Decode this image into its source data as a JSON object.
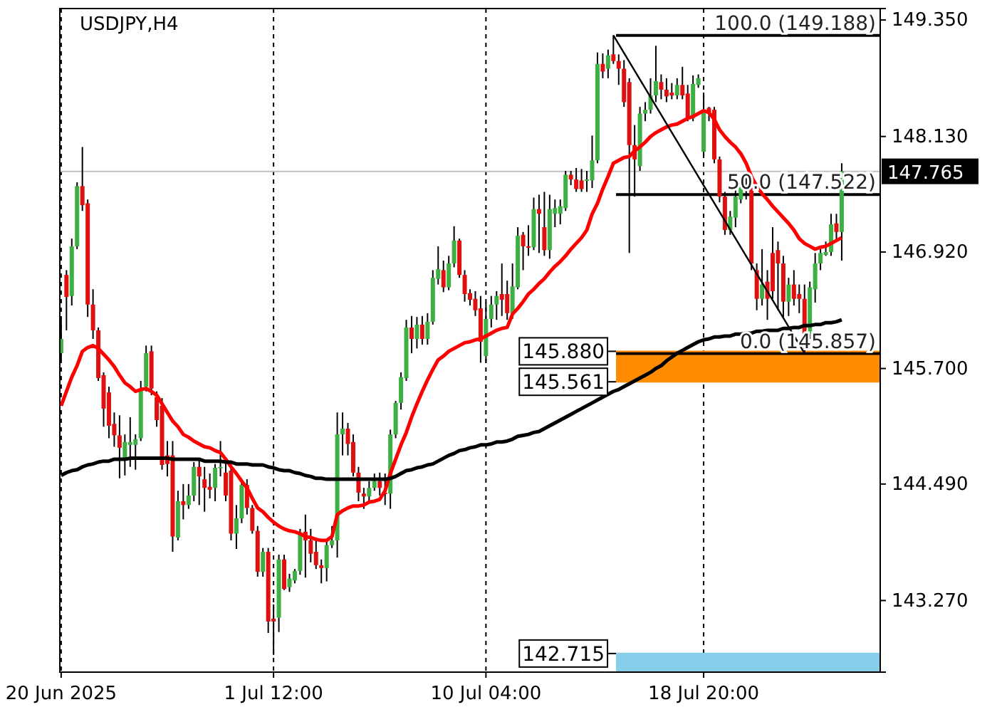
{
  "chart_data": {
    "type": "candlestick",
    "title": "USDJPY,H4",
    "categories": [
      "20 Jun 2025",
      null,
      null,
      null,
      null,
      null,
      null,
      null,
      null,
      null,
      null,
      null,
      null,
      null,
      null,
      null,
      null,
      null,
      null,
      null,
      null,
      null,
      null,
      null,
      null,
      null,
      null,
      null,
      null,
      null,
      null,
      null,
      null,
      null,
      null,
      null,
      null,
      null,
      null,
      null,
      "1 Jul 12:00",
      null,
      null,
      null,
      null,
      null,
      null,
      null,
      null,
      null,
      null,
      null,
      null,
      null,
      null,
      null,
      null,
      null,
      null,
      null,
      null,
      null,
      null,
      null,
      null,
      null,
      null,
      null,
      null,
      null,
      null,
      null,
      null,
      null,
      null,
      null,
      null,
      null,
      null,
      null,
      "10 Jul 04:00",
      null,
      null,
      null,
      null,
      null,
      null,
      null,
      null,
      null,
      null,
      null,
      null,
      null,
      null,
      null,
      null,
      null,
      null,
      null,
      null,
      null,
      null,
      null,
      null,
      null,
      null,
      null,
      null,
      null,
      null,
      null,
      null,
      null,
      null,
      null,
      null,
      null,
      null,
      null,
      null,
      "18 Jul 20:00",
      null,
      null,
      null,
      null,
      null,
      null,
      null,
      null,
      null,
      null,
      null,
      null,
      null,
      null,
      null,
      null,
      null,
      null,
      null,
      null,
      null,
      null,
      null,
      null,
      null,
      null
    ],
    "ohlc": [
      [
        145.86,
        146.21,
        145.79,
        146.01
      ],
      [
        146.68,
        146.73,
        146.1,
        146.45
      ],
      [
        146.46,
        147.06,
        146.36,
        146.98
      ],
      [
        146.98,
        147.65,
        146.95,
        147.61
      ],
      [
        147.61,
        148.02,
        147.35,
        147.41
      ],
      [
        147.43,
        147.47,
        146.24,
        146.37
      ],
      [
        146.37,
        146.53,
        146.01,
        146.1
      ],
      [
        146.1,
        146.13,
        145.57,
        145.6
      ],
      [
        145.63,
        145.66,
        145.09,
        145.28
      ],
      [
        145.45,
        145.51,
        144.97,
        145.1
      ],
      [
        145.12,
        145.24,
        144.88,
        145.0
      ],
      [
        145.0,
        145.21,
        144.55,
        144.87
      ],
      [
        144.75,
        145.01,
        144.58,
        144.93
      ],
      [
        144.9,
        145.19,
        144.67,
        144.93
      ],
      [
        144.9,
        145.01,
        144.64,
        144.96
      ],
      [
        144.97,
        145.57,
        144.94,
        145.49
      ],
      [
        145.51,
        145.94,
        145.46,
        145.86
      ],
      [
        145.88,
        145.94,
        145.42,
        145.49
      ],
      [
        145.4,
        145.46,
        145.09,
        145.16
      ],
      [
        145.31,
        145.39,
        144.64,
        144.69
      ],
      [
        144.79,
        144.94,
        144.57,
        144.7
      ],
      [
        144.79,
        144.94,
        143.78,
        143.94
      ],
      [
        143.93,
        144.42,
        143.9,
        144.31
      ],
      [
        144.31,
        144.49,
        144.12,
        144.27
      ],
      [
        144.27,
        144.49,
        144.23,
        144.37
      ],
      [
        144.37,
        144.72,
        144.31,
        144.67
      ],
      [
        144.67,
        144.76,
        144.27,
        144.57
      ],
      [
        144.54,
        144.67,
        144.2,
        144.45
      ],
      [
        144.46,
        144.6,
        144.34,
        144.43
      ],
      [
        144.45,
        144.7,
        144.31,
        144.66
      ],
      [
        144.66,
        144.94,
        144.57,
        144.67
      ],
      [
        144.61,
        144.76,
        144.31,
        144.37
      ],
      [
        144.63,
        144.7,
        143.9,
        143.97
      ],
      [
        143.97,
        144.27,
        143.81,
        144.13
      ],
      [
        144.13,
        144.52,
        144.08,
        144.48
      ],
      [
        144.48,
        144.54,
        144.17,
        144.24
      ],
      [
        144.24,
        144.27,
        143.97,
        144.0
      ],
      [
        144.0,
        144.05,
        143.52,
        143.57
      ],
      [
        143.57,
        143.82,
        143.52,
        143.78
      ],
      [
        143.78,
        143.82,
        142.93,
        143.05
      ],
      [
        143.08,
        143.23,
        142.7,
        143.05
      ],
      [
        143.09,
        143.75,
        142.94,
        143.7
      ],
      [
        143.7,
        143.75,
        143.38,
        143.39
      ],
      [
        143.41,
        143.55,
        143.36,
        143.5
      ],
      [
        143.48,
        143.6,
        143.45,
        143.58
      ],
      [
        143.58,
        144.02,
        143.54,
        143.96
      ],
      [
        143.99,
        144.17,
        143.51,
        143.9
      ],
      [
        143.9,
        144.02,
        143.67,
        143.76
      ],
      [
        143.78,
        143.93,
        143.6,
        143.64
      ],
      [
        143.64,
        143.7,
        143.45,
        143.61
      ],
      [
        143.61,
        143.9,
        143.47,
        143.85
      ],
      [
        143.85,
        144.05,
        143.82,
        143.9
      ],
      [
        143.9,
        145.24,
        143.72,
        145.01
      ],
      [
        145.01,
        145.24,
        144.79,
        145.07
      ],
      [
        145.07,
        145.13,
        144.79,
        144.91
      ],
      [
        144.93,
        145.01,
        144.57,
        144.61
      ],
      [
        144.61,
        144.67,
        144.31,
        144.4
      ],
      [
        144.39,
        144.45,
        144.23,
        144.36
      ],
      [
        144.36,
        144.52,
        144.31,
        144.45
      ],
      [
        144.45,
        144.6,
        144.42,
        144.52
      ],
      [
        144.52,
        144.61,
        144.37,
        144.45
      ],
      [
        144.4,
        144.6,
        144.27,
        144.39
      ],
      [
        144.39,
        145.06,
        144.23,
        145.01
      ],
      [
        145.01,
        145.36,
        144.97,
        145.34
      ],
      [
        145.34,
        145.66,
        145.27,
        145.61
      ],
      [
        145.6,
        146.21,
        145.57,
        146.13
      ],
      [
        146.13,
        146.25,
        145.86,
        146.01
      ],
      [
        146.01,
        146.24,
        145.91,
        146.16
      ],
      [
        146.16,
        146.25,
        145.95,
        146.01
      ],
      [
        146.01,
        146.28,
        145.95,
        146.19
      ],
      [
        146.19,
        146.73,
        146.16,
        146.65
      ],
      [
        146.64,
        146.98,
        146.58,
        146.74
      ],
      [
        146.73,
        146.83,
        146.5,
        146.55
      ],
      [
        146.55,
        146.88,
        146.52,
        146.8
      ],
      [
        146.8,
        147.19,
        146.76,
        147.04
      ],
      [
        147.04,
        147.06,
        146.65,
        146.68
      ],
      [
        146.68,
        146.73,
        146.4,
        146.48
      ],
      [
        146.49,
        146.53,
        146.36,
        146.42
      ],
      [
        146.43,
        146.51,
        146.25,
        146.31
      ],
      [
        146.33,
        146.46,
        145.76,
        145.98
      ],
      [
        145.83,
        146.39,
        145.76,
        146.22
      ],
      [
        146.22,
        146.46,
        146.13,
        146.37
      ],
      [
        146.37,
        146.51,
        146.21,
        146.46
      ],
      [
        146.48,
        146.8,
        146.25,
        146.42
      ],
      [
        146.48,
        146.62,
        146.21,
        146.28
      ],
      [
        146.28,
        146.8,
        146.22,
        146.56
      ],
      [
        146.55,
        147.18,
        146.53,
        147.09
      ],
      [
        147.1,
        147.13,
        146.73,
        146.98
      ],
      [
        146.98,
        147.2,
        146.88,
        146.97
      ],
      [
        146.97,
        147.49,
        146.94,
        147.37
      ],
      [
        147.37,
        147.52,
        146.91,
        147.32
      ],
      [
        147.18,
        147.55,
        146.88,
        146.94
      ],
      [
        146.94,
        147.52,
        146.85,
        147.37
      ],
      [
        147.32,
        147.47,
        147.18,
        147.38
      ],
      [
        147.32,
        147.47,
        147.21,
        147.4
      ],
      [
        147.38,
        147.77,
        147.35,
        147.73
      ],
      [
        147.73,
        147.77,
        147.62,
        147.68
      ],
      [
        147.68,
        147.8,
        147.55,
        147.58
      ],
      [
        147.67,
        147.79,
        147.55,
        147.58
      ],
      [
        147.67,
        147.77,
        147.55,
        147.68
      ],
      [
        147.67,
        148.14,
        147.59,
        147.88
      ],
      [
        147.88,
        149.01,
        147.85,
        148.89
      ],
      [
        148.89,
        149.0,
        148.74,
        148.81
      ],
      [
        148.84,
        149.04,
        148.74,
        148.98
      ],
      [
        148.99,
        149.19,
        148.89,
        148.92
      ],
      [
        148.92,
        148.99,
        148.67,
        148.84
      ],
      [
        148.84,
        148.93,
        148.44,
        148.49
      ],
      [
        148.7,
        148.74,
        146.91,
        148.04
      ],
      [
        148.04,
        148.25,
        147.5,
        147.89
      ],
      [
        147.82,
        148.44,
        147.77,
        148.37
      ],
      [
        148.37,
        148.49,
        148.29,
        148.41
      ],
      [
        148.41,
        148.74,
        148.37,
        148.56
      ],
      [
        148.56,
        149.08,
        148.49,
        148.71
      ],
      [
        148.7,
        148.78,
        148.52,
        148.62
      ],
      [
        148.62,
        148.74,
        148.49,
        148.55
      ],
      [
        148.59,
        148.69,
        148.52,
        148.56
      ],
      [
        148.56,
        148.74,
        148.52,
        148.67
      ],
      [
        148.67,
        148.86,
        148.52,
        148.56
      ],
      [
        148.58,
        148.67,
        148.29,
        148.32
      ],
      [
        148.32,
        148.77,
        148.29,
        148.68
      ],
      [
        148.67,
        148.78,
        148.64,
        148.74
      ],
      [
        147.97,
        148.59,
        147.92,
        148.4
      ],
      [
        148.43,
        148.44,
        148.29,
        148.37
      ],
      [
        148.41,
        148.44,
        147.85,
        147.89
      ],
      [
        147.89,
        147.92,
        147.44,
        147.5
      ],
      [
        147.5,
        147.55,
        147.1,
        147.15
      ],
      [
        147.15,
        147.35,
        147.1,
        147.29
      ],
      [
        147.28,
        147.62,
        147.18,
        147.5
      ],
      [
        147.47,
        147.7,
        147.43,
        147.61
      ],
      [
        147.61,
        147.7,
        147.47,
        147.58
      ],
      [
        147.59,
        147.62,
        146.73,
        146.8
      ],
      [
        146.73,
        146.8,
        146.31,
        146.43
      ],
      [
        146.43,
        146.95,
        146.36,
        146.58
      ],
      [
        146.61,
        146.73,
        146.21,
        146.43
      ],
      [
        146.91,
        147.18,
        146.43,
        146.51
      ],
      [
        146.94,
        147.03,
        146.31,
        146.8
      ],
      [
        146.8,
        146.88,
        146.24,
        146.4
      ],
      [
        146.4,
        146.65,
        146.25,
        146.58
      ],
      [
        146.58,
        146.73,
        146.36,
        146.43
      ],
      [
        146.48,
        146.58,
        146.28,
        146.43
      ],
      [
        146.43,
        146.58,
        145.86,
        146.06
      ],
      [
        146.06,
        146.61,
        146.01,
        146.55
      ],
      [
        146.53,
        146.91,
        146.39,
        146.8
      ],
      [
        146.8,
        146.95,
        146.73,
        146.91
      ],
      [
        146.89,
        147.03,
        146.88,
        146.92
      ],
      [
        146.92,
        147.32,
        146.88,
        147.21
      ],
      [
        147.22,
        147.32,
        147.03,
        147.13
      ],
      [
        147.13,
        147.85,
        146.83,
        147.765
      ]
    ],
    "series": [
      {
        "type": "line",
        "color": "#ff0000",
        "values": [
          145.31,
          145.46,
          145.61,
          145.73,
          145.88,
          145.92,
          145.94,
          145.91,
          145.85,
          145.79,
          145.72,
          145.63,
          145.55,
          145.51,
          145.46,
          145.48,
          145.49,
          145.46,
          145.42,
          145.33,
          145.24,
          145.15,
          145.09,
          145.01,
          144.98,
          144.94,
          144.91,
          144.88,
          144.87,
          144.84,
          144.82,
          144.75,
          144.67,
          144.6,
          144.52,
          144.45,
          144.34,
          144.24,
          144.2,
          144.14,
          144.09,
          144.05,
          144.02,
          144.0,
          143.99,
          143.97,
          143.94,
          143.93,
          143.91,
          143.9,
          143.9,
          143.94,
          144.17,
          144.21,
          144.24,
          144.26,
          144.26,
          144.27,
          144.3,
          144.31,
          144.33,
          144.42,
          144.6,
          144.75,
          144.9,
          145.03,
          145.19,
          145.33,
          145.46,
          145.58,
          145.69,
          145.79,
          145.83,
          145.88,
          145.91,
          145.94,
          145.97,
          145.98,
          146.0,
          146.01,
          146.04,
          146.07,
          146.1,
          146.12,
          146.13,
          146.27,
          146.33,
          146.4,
          146.48,
          146.53,
          146.59,
          146.64,
          146.71,
          146.77,
          146.82,
          146.88,
          146.95,
          147.01,
          147.07,
          147.15,
          147.32,
          147.43,
          147.58,
          147.71,
          147.85,
          147.88,
          147.91,
          147.92,
          147.98,
          148.02,
          148.07,
          148.13,
          148.17,
          148.2,
          148.23,
          148.25,
          148.26,
          148.29,
          148.32,
          148.34,
          148.37,
          148.4,
          148.38,
          148.31,
          148.2,
          148.13,
          148.07,
          148.02,
          147.95,
          147.85,
          147.71,
          147.61,
          147.53,
          147.47,
          147.4,
          147.34,
          147.28,
          147.22,
          147.15,
          147.06,
          147.01,
          146.98,
          146.95,
          146.97,
          146.98,
          147.01,
          147.04,
          147.07
        ]
      },
      {
        "type": "line",
        "color": "#000000",
        "values": [
          144.58,
          144.61,
          144.63,
          144.64,
          144.67,
          144.69,
          144.7,
          144.72,
          144.73,
          144.73,
          144.75,
          144.75,
          144.75,
          144.76,
          144.76,
          144.76,
          144.76,
          144.76,
          144.76,
          144.76,
          144.76,
          144.75,
          144.75,
          144.75,
          144.75,
          144.75,
          144.75,
          144.73,
          144.73,
          144.73,
          144.73,
          144.72,
          144.72,
          144.7,
          144.7,
          144.7,
          144.69,
          144.69,
          144.69,
          144.67,
          144.66,
          144.64,
          144.63,
          144.63,
          144.61,
          144.6,
          144.58,
          144.57,
          144.55,
          144.55,
          144.54,
          144.54,
          144.54,
          144.54,
          144.54,
          144.54,
          144.54,
          144.54,
          144.54,
          144.54,
          144.54,
          144.54,
          144.55,
          144.57,
          144.6,
          144.63,
          144.64,
          144.66,
          144.67,
          144.69,
          144.7,
          144.73,
          144.76,
          144.79,
          144.81,
          144.84,
          144.85,
          144.87,
          144.88,
          144.9,
          144.9,
          144.91,
          144.93,
          144.93,
          144.94,
          144.96,
          144.99,
          145.0,
          145.01,
          145.03,
          145.04,
          145.07,
          145.1,
          145.13,
          145.16,
          145.19,
          145.22,
          145.25,
          145.28,
          145.31,
          145.34,
          145.37,
          145.4,
          145.43,
          145.46,
          145.48,
          145.51,
          145.54,
          145.57,
          145.6,
          145.63,
          145.66,
          145.7,
          145.73,
          145.78,
          145.82,
          145.86,
          145.89,
          145.92,
          145.95,
          145.98,
          146.0,
          146.01,
          146.03,
          146.03,
          146.04,
          146.04,
          146.06,
          146.06,
          146.07,
          146.07,
          146.09,
          146.09,
          146.1,
          146.1,
          146.1,
          146.12,
          146.12,
          146.13,
          146.13,
          146.15,
          146.15,
          146.16,
          146.16,
          146.18,
          146.18,
          146.19,
          146.21
        ]
      },
      {
        "type": "line",
        "color": "#000000",
        "values": [
          null,
          null,
          null,
          null,
          null,
          null,
          null,
          null,
          null,
          null,
          null,
          null,
          null,
          null,
          null,
          null,
          null,
          null,
          null,
          null,
          null,
          null,
          null,
          null,
          null,
          null,
          null,
          null,
          null,
          null,
          null,
          null,
          null,
          null,
          null,
          null,
          null,
          null,
          null,
          null,
          null,
          null,
          null,
          null,
          null,
          null,
          null,
          null,
          null,
          null,
          null,
          null,
          null,
          null,
          null,
          null,
          null,
          null,
          null,
          null,
          null,
          null,
          null,
          null,
          null,
          null,
          null,
          null,
          null,
          null,
          null,
          null,
          null,
          null,
          null,
          null,
          null,
          null,
          null,
          null,
          null,
          null,
          null,
          null,
          null,
          null,
          null,
          null,
          null,
          null,
          null,
          null,
          null,
          null,
          null,
          null,
          null,
          null,
          null,
          null,
          null,
          null,
          null,
          null,
          149.19,
          null,
          null,
          null,
          null,
          null,
          null,
          null,
          null,
          null,
          null,
          null,
          null,
          null,
          null,
          null,
          null,
          null,
          null,
          null,
          null,
          null,
          null,
          null,
          null,
          null,
          null,
          null,
          null,
          null,
          null,
          null,
          null,
          null,
          null,
          null,
          145.86,
          null,
          null,
          null,
          null,
          null,
          null,
          null
        ]
      }
    ],
    "ylim": [
      142.52,
      149.47
    ],
    "yticks": [
      {
        "value": 143.27,
        "label": "143.270"
      },
      {
        "value": 144.49,
        "label": "144.490"
      },
      {
        "value": 145.7,
        "label": "145.700"
      },
      {
        "value": 146.92,
        "label": "146.920"
      },
      {
        "value": 148.13,
        "label": "148.130"
      },
      {
        "value": 149.35,
        "label": "149.350"
      }
    ],
    "grid": "x",
    "ref_lines": [
      {
        "axis": "y",
        "value": 147.765,
        "label": "147.765",
        "color": "#c0c0c0",
        "line_style": "solid"
      },
      {
        "axis": "y",
        "value": 149.188,
        "label": "100.0 (149.188)"
      },
      {
        "axis": "y",
        "value": 147.522,
        "label": "50.0 (147.522)"
      },
      {
        "axis": "y",
        "value": 145.857,
        "label": "0.0 (145.857)"
      },
      {
        "axis": "y",
        "value": 145.88,
        "label": "145.880",
        "color": "#ff8c00"
      },
      {
        "axis": "y",
        "value": 145.561,
        "label": "145.561",
        "color": "#ff8c00"
      },
      {
        "axis": "y",
        "value": 142.715,
        "label": "142.715",
        "color": "#87ceeb"
      }
    ],
    "bands": [
      {
        "axis": "y",
        "from": 145.561,
        "to": 145.88,
        "color": "#ff8c00"
      },
      {
        "axis": "y",
        "from": 142.52,
        "to": 142.715,
        "color": "#87ceeb"
      }
    ]
  }
}
